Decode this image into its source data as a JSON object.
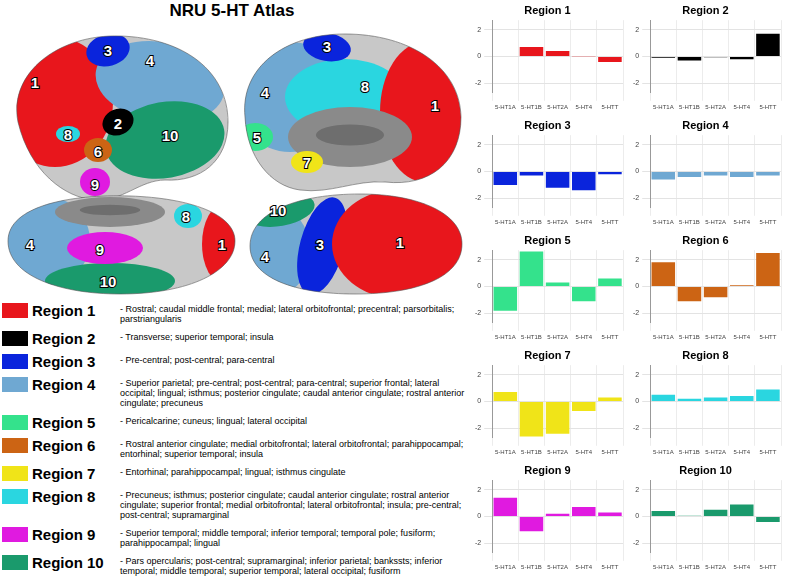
{
  "title": "NRU 5-HT Atlas",
  "brain_views": [
    {
      "labels": [
        "1",
        "4",
        "10",
        "3",
        "8",
        "2",
        "6",
        "9"
      ]
    },
    {
      "labels": [
        "4",
        "8",
        "1",
        "3",
        "5",
        "7"
      ]
    },
    {
      "labels": [
        "4",
        "10",
        "9",
        "8",
        "1"
      ]
    },
    {
      "labels": [
        "4",
        "10",
        "3",
        "1"
      ]
    }
  ],
  "regions": [
    {
      "name": "Region 1",
      "color": "#e8161c",
      "description": "- Rostral; caudal middle frontal; medial; lateral orbitofrontal; precentral; parsorbitalis; parstriangularis"
    },
    {
      "name": "Region 2",
      "color": "#000000",
      "description": "- Transverse; superior temporal; insula"
    },
    {
      "name": "Region 3",
      "color": "#0a24dc",
      "description": "- Pre-central; post-central; para-central"
    },
    {
      "name": "Region 4",
      "color": "#6fa8d2",
      "description": "- Superior parietal; pre-central; post-central; para-central; superior frontal; lateral occipital; lingual; isthmus; posterior cingulate; caudal anterior cingulate; rostral anterior cingulate; precuneus"
    },
    {
      "name": "Region 5",
      "color": "#34e28c",
      "description": "- Pericalcarine; cuneus; lingual; lateral occipital"
    },
    {
      "name": "Region 6",
      "color": "#cc6414",
      "description": "- Rostral anterior cingulate; medial orbitofrontal; lateral orbitofrontal; parahippocampal; entorhinal; superior temporal; insula"
    },
    {
      "name": "Region 7",
      "color": "#f0e418",
      "description": "- Entorhinal; parahippocampal; lingual; isthmus cingulate"
    },
    {
      "name": "Region 8",
      "color": "#2ad6e0",
      "description": "- Precuneus; isthmus; posterior cingulate; caudal anterior cingulate; rostral anterior cingulate; superior frontal; medial orbitofrontal; lateral orbitofrontal; insula; pre-central; post-central; supramarginal"
    },
    {
      "name": "Region 9",
      "color": "#e01ae0",
      "description": "- Superior temporal; middle temporal; inferior temporal; temporal pole; fusiform; parahippocampal; lingual"
    },
    {
      "name": "Region 10",
      "color": "#1a9a6c",
      "description": "- Pars opercularis; post-central; supramarginal; inferior parietal; bankssts; inferior temporal; middle temporal; superior temporal; lateral occipital; fusiform"
    }
  ],
  "chart_data": [
    {
      "type": "bar",
      "title": "Region 1",
      "categories": [
        "5-HT1A",
        "5-HT1B",
        "5-HT2A",
        "5-HT4",
        "5-HTT"
      ],
      "values": [
        0.0,
        0.7,
        0.4,
        0.02,
        -0.4
      ],
      "color": "#e8161c",
      "ylim": [
        -2.7,
        2.7
      ],
      "yticks": [
        -2,
        0,
        2
      ],
      "grid": true
    },
    {
      "type": "bar",
      "title": "Region 2",
      "categories": [
        "5-HT1A",
        "5-HT1B",
        "5-HT2A",
        "5-HT4",
        "5-HTT"
      ],
      "values": [
        -0.1,
        -0.3,
        -0.05,
        -0.2,
        1.7
      ],
      "color": "#000000",
      "ylim": [
        -2.7,
        2.7
      ],
      "yticks": [
        -2,
        0,
        2
      ],
      "grid": true
    },
    {
      "type": "bar",
      "title": "Region 3",
      "categories": [
        "5-HT1A",
        "5-HT1B",
        "5-HT2A",
        "5-HT4",
        "5-HTT"
      ],
      "values": [
        -1.0,
        -0.3,
        -1.2,
        -1.4,
        -0.2
      ],
      "color": "#0a24dc",
      "ylim": [
        -2.7,
        2.7
      ],
      "yticks": [
        -2,
        0,
        2
      ],
      "grid": true
    },
    {
      "type": "bar",
      "title": "Region 4",
      "categories": [
        "5-HT1A",
        "5-HT1B",
        "5-HT2A",
        "5-HT4",
        "5-HTT"
      ],
      "values": [
        -0.6,
        -0.4,
        -0.3,
        -0.4,
        -0.3
      ],
      "color": "#6fa8d2",
      "ylim": [
        -2.7,
        2.7
      ],
      "yticks": [
        -2,
        0,
        2
      ],
      "grid": true
    },
    {
      "type": "bar",
      "title": "Region 5",
      "categories": [
        "5-HT1A",
        "5-HT1B",
        "5-HT2A",
        "5-HT4",
        "5-HTT"
      ],
      "values": [
        -1.8,
        2.6,
        0.3,
        -1.1,
        0.6
      ],
      "color": "#34e28c",
      "ylim": [
        -2.7,
        2.7
      ],
      "yticks": [
        -2,
        0,
        2
      ],
      "grid": true
    },
    {
      "type": "bar",
      "title": "Region 6",
      "categories": [
        "5-HT1A",
        "5-HT1B",
        "5-HT2A",
        "5-HT4",
        "5-HTT"
      ],
      "values": [
        1.8,
        -1.1,
        -0.8,
        0.1,
        2.5
      ],
      "color": "#cc6414",
      "ylim": [
        -2.7,
        2.7
      ],
      "yticks": [
        -2,
        0,
        2
      ],
      "grid": true
    },
    {
      "type": "bar",
      "title": "Region 7",
      "categories": [
        "5-HT1A",
        "5-HT1B",
        "5-HT2A",
        "5-HT4",
        "5-HTT"
      ],
      "values": [
        0.7,
        -2.6,
        -2.4,
        -0.7,
        0.3
      ],
      "color": "#f0e418",
      "ylim": [
        -2.7,
        2.7
      ],
      "yticks": [
        -2,
        0,
        2
      ],
      "grid": true
    },
    {
      "type": "bar",
      "title": "Region 8",
      "categories": [
        "5-HT1A",
        "5-HT1B",
        "5-HT2A",
        "5-HT4",
        "5-HTT"
      ],
      "values": [
        0.5,
        0.2,
        0.3,
        0.4,
        0.9
      ],
      "color": "#2ad6e0",
      "ylim": [
        -2.7,
        2.7
      ],
      "yticks": [
        -2,
        0,
        2
      ],
      "grid": true
    },
    {
      "type": "bar",
      "title": "Region 9",
      "categories": [
        "5-HT1A",
        "5-HT1B",
        "5-HT2A",
        "5-HT4",
        "5-HTT"
      ],
      "values": [
        1.4,
        -1.1,
        0.2,
        0.7,
        0.3
      ],
      "color": "#e01ae0",
      "ylim": [
        -2.7,
        2.7
      ],
      "yticks": [
        -2,
        0,
        2
      ],
      "grid": true
    },
    {
      "type": "bar",
      "title": "Region 10",
      "categories": [
        "5-HT1A",
        "5-HT1B",
        "5-HT2A",
        "5-HT4",
        "5-HTT"
      ],
      "values": [
        0.4,
        0.05,
        0.5,
        0.9,
        -0.4
      ],
      "color": "#1a9a6c",
      "ylim": [
        -2.7,
        2.7
      ],
      "yticks": [
        -2,
        0,
        2
      ],
      "grid": true
    }
  ]
}
